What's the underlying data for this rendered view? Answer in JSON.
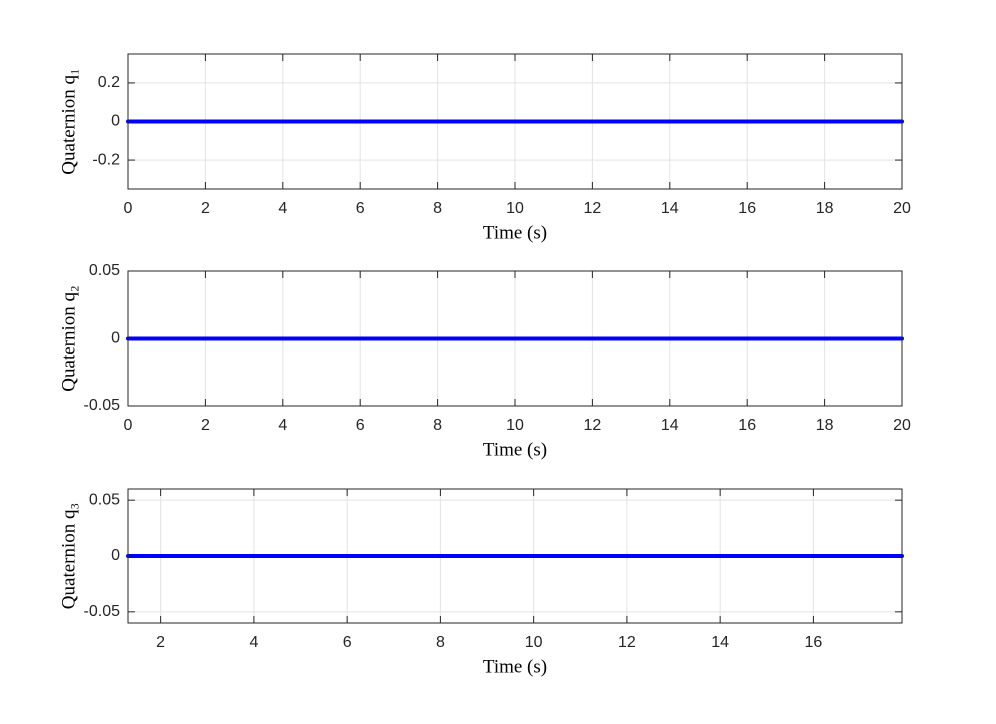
{
  "chart_data": [
    {
      "type": "line",
      "ylabel": "Quaternion q₁",
      "xlabel": "Time (s)",
      "x": [
        0,
        20
      ],
      "series": [
        {
          "color": "#0000ff",
          "values": [
            0,
            0
          ]
        }
      ],
      "xlim": [
        0,
        20
      ],
      "xticks": [
        0,
        2,
        4,
        6,
        8,
        10,
        12,
        14,
        16,
        18,
        20
      ],
      "ylim": [
        -0.35,
        0.35
      ],
      "yticks": [
        -0.2,
        0,
        0.2
      ],
      "grid": true
    },
    {
      "type": "line",
      "ylabel": "Quaternion q₂",
      "xlabel": "Time (s)",
      "x": [
        0,
        20
      ],
      "series": [
        {
          "color": "#0000ff",
          "values": [
            0,
            0
          ]
        }
      ],
      "xlim": [
        0,
        20
      ],
      "xticks": [
        0,
        2,
        4,
        6,
        8,
        10,
        12,
        14,
        16,
        18,
        20
      ],
      "ylim": [
        -0.05,
        0.05
      ],
      "yticks": [
        -0.05,
        0,
        0.05
      ],
      "grid": true
    },
    {
      "type": "line",
      "ylabel": "Quaternion q₃",
      "xlabel": "Time (s)",
      "x": [
        1.3,
        17.9
      ],
      "series": [
        {
          "color": "#0000ff",
          "values": [
            0,
            0
          ]
        }
      ],
      "xlim": [
        1.3,
        17.9
      ],
      "xticks": [
        2,
        4,
        6,
        8,
        10,
        12,
        14,
        16
      ],
      "ylim": [
        -0.06,
        0.06
      ],
      "yticks": [
        -0.05,
        0,
        0.05
      ],
      "grid": true
    }
  ]
}
